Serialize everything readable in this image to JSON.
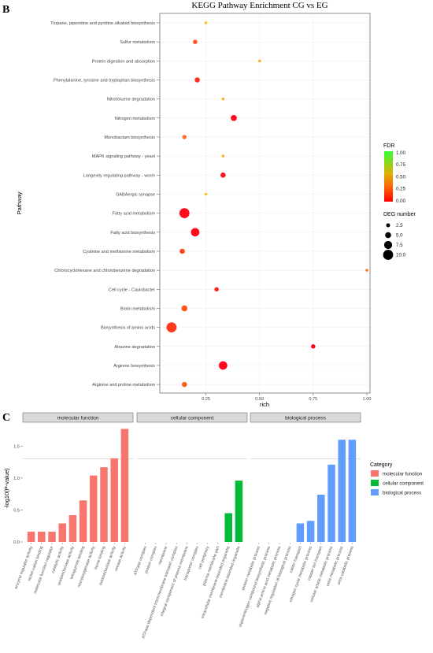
{
  "panel_b_letter": "B",
  "panel_c_letter": "C",
  "chart_data": [
    {
      "type": "scatter",
      "title": "KEGG Pathway Enrichment  CG vs EG",
      "xlabel": "rich",
      "ylabel": "Pathway",
      "xlim": [
        0.05,
        1.0
      ],
      "xticks": [
        "0.25",
        "0.50",
        "0.75",
        "1.00"
      ],
      "grid": true,
      "legend_position": "right",
      "color_legend": {
        "title": "FDR",
        "ticks": [
          "1.00",
          "0.75",
          "0.50",
          "0.25",
          "0.00"
        ],
        "low_color": "#ff0000",
        "high_color": "#33ff33"
      },
      "size_legend": {
        "title": "DEG number",
        "ticks": [
          "2.5",
          "5.0",
          "7.5",
          "10.0"
        ]
      },
      "points": [
        {
          "pathway": "Tropane, piperidine and pyridine alkaloid biosynthesis",
          "rich": 0.25,
          "deg": 1,
          "fdr": 0.5
        },
        {
          "pathway": "Sulfur metabolism",
          "rich": 0.2,
          "deg": 3,
          "fdr": 0.22
        },
        {
          "pathway": "Protein digestion and absorption",
          "rich": 0.5,
          "deg": 1,
          "fdr": 0.45
        },
        {
          "pathway": "Phenylalanine, tyrosine and tryptophan biosynthesis",
          "rich": 0.21,
          "deg": 4,
          "fdr": 0.12
        },
        {
          "pathway": "Nitrotoluene degradation",
          "rich": 0.33,
          "deg": 1,
          "fdr": 0.45
        },
        {
          "pathway": "Nitrogen metabolism",
          "rich": 0.38,
          "deg": 5,
          "fdr": 0.02
        },
        {
          "pathway": "Monobactam biosynthesis",
          "rich": 0.15,
          "deg": 3,
          "fdr": 0.3
        },
        {
          "pathway": "MAPK signaling pathway - yeast",
          "rich": 0.33,
          "deg": 1,
          "fdr": 0.45
        },
        {
          "pathway": "Longevity regulating pathway - worm",
          "rich": 0.33,
          "deg": 4,
          "fdr": 0.05
        },
        {
          "pathway": "GABAergic synapse",
          "rich": 0.25,
          "deg": 1,
          "fdr": 0.5
        },
        {
          "pathway": "Fatty acid metabolism",
          "rich": 0.15,
          "deg": 10,
          "fdr": 0.03
        },
        {
          "pathway": "Fatty acid biosynthesis",
          "rich": 0.2,
          "deg": 8,
          "fdr": 0.03
        },
        {
          "pathway": "Cysteine and methionine metabolism",
          "rich": 0.14,
          "deg": 4,
          "fdr": 0.18
        },
        {
          "pathway": "Chlorocyclohexane and chlorobenzene degradation",
          "rich": 1.0,
          "deg": 1,
          "fdr": 0.3
        },
        {
          "pathway": "Cell cycle - Caulobacter",
          "rich": 0.3,
          "deg": 3,
          "fdr": 0.1
        },
        {
          "pathway": "Biotin metabolism",
          "rich": 0.15,
          "deg": 5,
          "fdr": 0.22
        },
        {
          "pathway": "Biosynthesis of amino acids",
          "rich": 0.09,
          "deg": 10,
          "fdr": 0.15
        },
        {
          "pathway": "Atrazine degradation",
          "rich": 0.75,
          "deg": 3,
          "fdr": 0.02
        },
        {
          "pathway": "Arginine biosynthesis",
          "rich": 0.33,
          "deg": 8,
          "fdr": 0.02
        },
        {
          "pathway": "Arginine and proline metabolism",
          "rich": 0.15,
          "deg": 4,
          "fdr": 0.25
        }
      ]
    },
    {
      "type": "bar",
      "ylabel": "-log10(P-value)",
      "ylim": [
        0,
        1.8
      ],
      "yticks": [
        "0.0",
        "0.5",
        "1.0",
        "1.5"
      ],
      "threshold": 1.3,
      "legend_title": "Category",
      "legend_position": "right",
      "facets": [
        {
          "name": "molecular function",
          "color": "#f8766d",
          "categories": [
            "enzyme regulator activity",
            "nickel cation binding",
            "molecular function regulator",
            "catalytic activity",
            "oxidoreductase activity",
            "tetrapyrrole binding",
            "monooxygenase activity",
            "heme binding",
            "oxidoreductase activity",
            "urease activity"
          ],
          "values": [
            0.16,
            0.16,
            0.16,
            0.29,
            0.42,
            0.65,
            1.04,
            1.17,
            1.31,
            1.77
          ]
        },
        {
          "name": "cellular component",
          "color": "#00ba38",
          "categories": [
            "ATPase complex",
            "protein complex",
            "membrane",
            "ATPase dependent transmembrane transport complex",
            "integral component of plasma membrane",
            "transporter complex",
            "cell periphery",
            "plasma membrane part",
            "intracellular membrane-bounded organelle",
            "membrane-bounded organelle"
          ],
          "values": [
            0,
            0,
            0,
            0,
            0,
            0,
            0,
            0,
            0.45,
            0.96
          ]
        },
        {
          "name": "biological process",
          "color": "#619cff",
          "categories": [
            "protein metabolic process",
            "organonitrogen compound biosynthetic process",
            "alpha-amino acid metabolic process",
            "negative regulation of biological process",
            "cation transport",
            "nitrogen cycle metabolic process",
            "copper ion transport",
            "cellular amide metabolic process",
            "urea metabolic process",
            "urea catabolic process"
          ],
          "values": [
            0,
            0,
            0,
            0,
            0.29,
            0.33,
            0.74,
            1.21,
            1.6,
            1.6
          ]
        }
      ]
    }
  ]
}
